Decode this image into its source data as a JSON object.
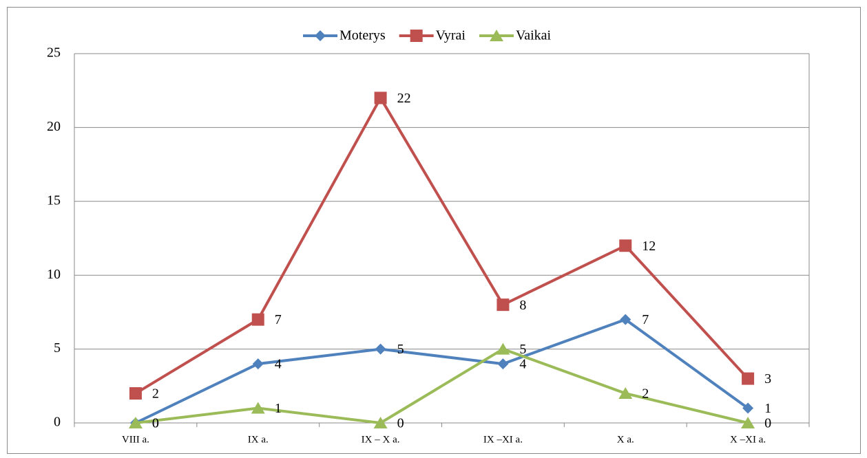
{
  "chart_data": {
    "type": "line",
    "categories": [
      "VIII a.",
      "IX a.",
      "IX – X a.",
      "IX –XI a.",
      "X a.",
      "X –XI a."
    ],
    "series": [
      {
        "name": "Moterys",
        "color": "#4f81bd",
        "marker": "diamond",
        "values": [
          0,
          4,
          5,
          4,
          7,
          1
        ]
      },
      {
        "name": "Vyrai",
        "color": "#c0504d",
        "marker": "square",
        "values": [
          2,
          7,
          22,
          8,
          12,
          3
        ]
      },
      {
        "name": "Vaikai",
        "color": "#9bbb59",
        "marker": "triangle",
        "values": [
          0,
          1,
          0,
          5,
          2,
          0
        ]
      }
    ],
    "ylim": [
      0,
      25
    ],
    "yticks": [
      0,
      5,
      10,
      15,
      20,
      25
    ],
    "grid": true,
    "legend": "top",
    "data_labels": true
  }
}
